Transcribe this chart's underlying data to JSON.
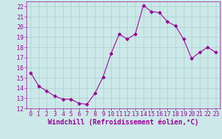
{
  "x": [
    0,
    1,
    2,
    3,
    4,
    5,
    6,
    7,
    8,
    9,
    10,
    11,
    12,
    13,
    14,
    15,
    16,
    17,
    18,
    19,
    20,
    21,
    22,
    23
  ],
  "y": [
    15.5,
    14.2,
    13.7,
    13.2,
    12.9,
    12.9,
    12.5,
    12.4,
    13.5,
    15.1,
    17.4,
    19.3,
    18.8,
    19.3,
    22.1,
    21.5,
    21.4,
    20.5,
    20.1,
    18.8,
    16.9,
    17.5,
    18.0,
    17.5
  ],
  "line_color": "#990099",
  "marker": "D",
  "marker_size": 2.5,
  "bg_color": "#cce8e8",
  "grid_color": "#aacece",
  "xlabel": "Windchill (Refroidissement éolien,°C)",
  "xlabel_color": "#990099",
  "xlabel_fontsize": 7,
  "tick_color": "#990099",
  "tick_fontsize": 6,
  "ylim": [
    12,
    22.5
  ],
  "xlim": [
    -0.5,
    23.5
  ],
  "yticks": [
    12,
    13,
    14,
    15,
    16,
    17,
    18,
    19,
    20,
    21,
    22
  ],
  "xticks": [
    0,
    1,
    2,
    3,
    4,
    5,
    6,
    7,
    8,
    9,
    10,
    11,
    12,
    13,
    14,
    15,
    16,
    17,
    18,
    19,
    20,
    21,
    22,
    23
  ]
}
